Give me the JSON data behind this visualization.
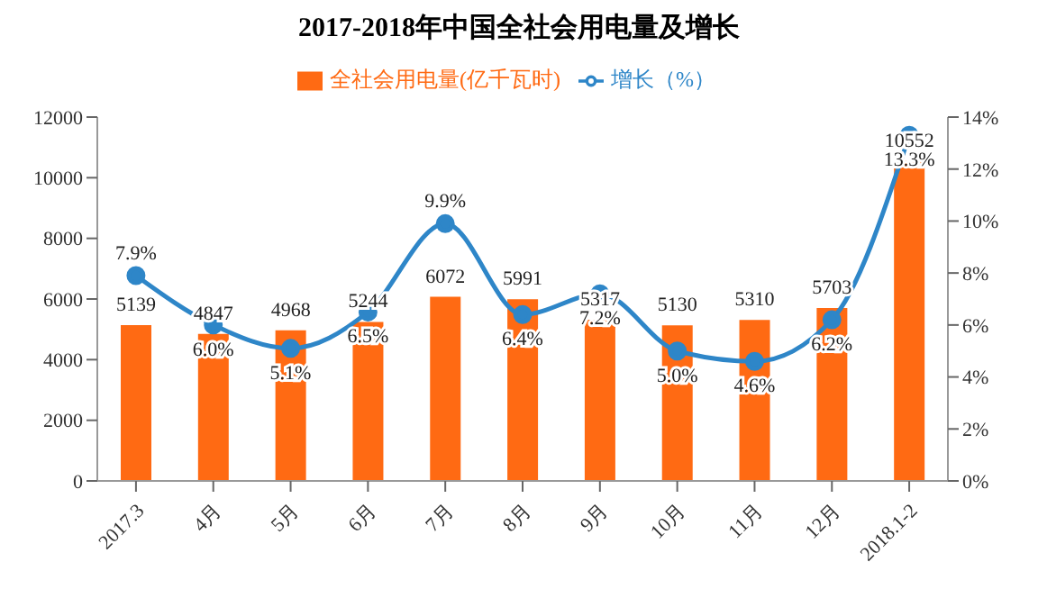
{
  "chart_data": {
    "type": "bar",
    "title": "2017-2018年中国全社会用电量及增长",
    "categories": [
      "2017.3",
      "4月",
      "5月",
      "6月",
      "7月",
      "8月",
      "9月",
      "10月",
      "11月",
      "12月",
      "2018.1-2"
    ],
    "series": [
      {
        "name": "全社会用电量(亿千瓦时)",
        "color": "#ff6a13",
        "values": [
          5139,
          4847,
          4968,
          5244,
          6072,
          5991,
          5317,
          5130,
          5310,
          5703,
          10552
        ]
      },
      {
        "name": "增长（%）",
        "type": "line",
        "axis": "y2",
        "color": "#2e86c8",
        "values": [
          7.9,
          6.0,
          5.1,
          6.5,
          9.9,
          6.4,
          7.2,
          5.0,
          4.6,
          6.2,
          13.3
        ],
        "value_labels": [
          "7.9%",
          "6.0%",
          "5.1%",
          "6.5%",
          "9.9%",
          "6.4%",
          "7.2%",
          "5.0%",
          "4.6%",
          "6.2%",
          "13.3%"
        ]
      }
    ],
    "ylim": [
      0,
      12000
    ],
    "yticks": [
      0,
      2000,
      4000,
      6000,
      8000,
      10000,
      12000
    ],
    "y2lim": [
      0,
      14
    ],
    "y2ticks": [
      {
        "value": 0,
        "label": "0%"
      },
      {
        "value": 2,
        "label": "2%"
      },
      {
        "value": 4,
        "label": "4%"
      },
      {
        "value": 6,
        "label": "6%"
      },
      {
        "value": 8,
        "label": "8%"
      },
      {
        "value": 10,
        "label": "10%"
      },
      {
        "value": 12,
        "label": "12%"
      },
      {
        "value": 14,
        "label": "14%"
      }
    ],
    "data_labels": true,
    "legend": "top",
    "marker": "circle"
  }
}
